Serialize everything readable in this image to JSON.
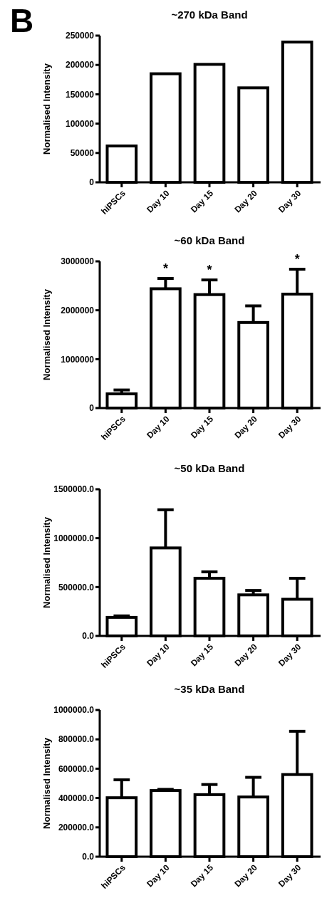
{
  "chart_data": [
    {
      "type": "bar",
      "title": "~270 kDa Band",
      "ylabel": "Normalised Intensity",
      "annotations": [
        "B"
      ],
      "categories": [
        "hiPSCs",
        "Day 10",
        "Day 15",
        "Day 20",
        "Day 30"
      ],
      "values": [
        62000,
        185000,
        201000,
        161000,
        239000
      ],
      "color": "#ffffff",
      "ylim": [
        0,
        250000
      ],
      "yticks": [
        0,
        50000,
        100000,
        150000,
        200000,
        250000
      ]
    },
    {
      "type": "bar",
      "title": "~60 kDa Band",
      "ylabel": "Normalised Intensity",
      "annotations": [
        {
          "text": "*",
          "x": "Day 10",
          "y": 2650000
        },
        {
          "text": "*",
          "x": "Day 15",
          "y": 2620000
        },
        {
          "text": "*",
          "x": "Day 30",
          "y": 2840000
        }
      ],
      "categories": [
        "hiPSCs",
        "Day 10",
        "Day 15",
        "Day 20",
        "Day 30"
      ],
      "values": [
        290000,
        2440000,
        2320000,
        1750000,
        2330000
      ],
      "errors": [
        [
          290000,
          370000
        ],
        [
          2440000,
          2650000
        ],
        [
          2320000,
          2620000
        ],
        [
          1750000,
          2090000
        ],
        [
          2330000,
          2840000
        ]
      ],
      "color": "#ffffff",
      "ylim": [
        0,
        3000000
      ],
      "yticks": [
        0,
        1000000,
        2000000,
        3000000
      ]
    },
    {
      "type": "bar",
      "title": "~50 kDa Band",
      "ylabel": "Normalised Intensity",
      "categories": [
        "hiPSCs",
        "Day 10",
        "Day 15",
        "Day 20",
        "Day 30"
      ],
      "values": [
        190000,
        900000,
        590000,
        420000,
        375000
      ],
      "errors": [
        [
          190000,
          205000
        ],
        [
          900000,
          1290000
        ],
        [
          590000,
          655000
        ],
        [
          420000,
          465000
        ],
        [
          375000,
          590000
        ]
      ],
      "color": "#ffffff",
      "ylim": [
        0,
        1500000
      ],
      "yticks": [
        {
          "value": 0,
          "label": "0.0"
        },
        {
          "value": 500000,
          "label": "500000.0"
        },
        {
          "value": 1000000,
          "label": "1000000.0"
        },
        {
          "value": 1500000,
          "label": "1500000.0"
        }
      ]
    },
    {
      "type": "bar",
      "title": "~35 kDa Band",
      "ylabel": "Normalised Intensity",
      "categories": [
        "hiPSCs",
        "Day 10",
        "Day 15",
        "Day 20",
        "Day 30"
      ],
      "values": [
        402000,
        451000,
        423000,
        407000,
        560000
      ],
      "errors": [
        [
          402000,
          524000
        ],
        [
          451000,
          459000
        ],
        [
          423000,
          492000
        ],
        [
          407000,
          541000
        ],
        [
          560000,
          855000
        ]
      ],
      "color": "#ffffff",
      "ylim": [
        0,
        1000000
      ],
      "yticks": [
        {
          "value": 0,
          "label": "0.0"
        },
        {
          "value": 200000,
          "label": "200000.0"
        },
        {
          "value": 400000,
          "label": "400000.0"
        },
        {
          "value": 600000,
          "label": "600000.0"
        },
        {
          "value": 800000,
          "label": "800000.0"
        },
        {
          "value": 1000000,
          "label": "1000000.0"
        }
      ]
    }
  ]
}
